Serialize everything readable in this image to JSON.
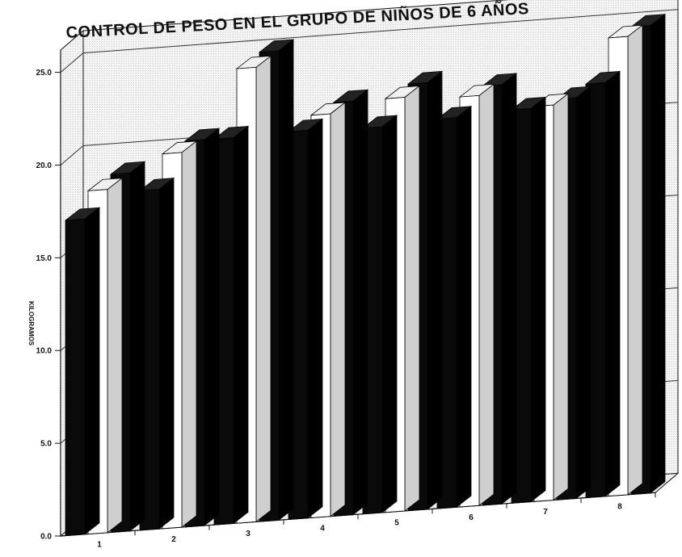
{
  "chart_data": {
    "type": "bar",
    "title": "CONTROL DE PESO EN EL GRUPO DE NIÑOS DE 6 AÑOS",
    "xlabel": "",
    "ylabel": "KILOGRAMOS",
    "categories": [
      "1",
      "2",
      "3",
      "4",
      "5",
      "6",
      "7",
      "8"
    ],
    "series": [
      {
        "values": [
          17.0,
          18.3,
          20.8,
          20.9,
          20.8,
          21.0,
          21.2,
          22.3
        ]
      },
      {
        "values": [
          18.5,
          20.2,
          24.5,
          21.7,
          22.3,
          22.1,
          21.3,
          24.7
        ]
      },
      {
        "values": [
          19.3,
          20.8,
          25.3,
          22.3,
          23.0,
          22.6,
          21.6,
          25.2
        ]
      }
    ],
    "ylim": [
      0,
      25
    ],
    "yticks": [
      "0.0",
      "5.0",
      "10.0",
      "15.0",
      "20.0",
      "25.0"
    ],
    "grid": true,
    "view": "3d",
    "colors": {
      "series_front": "#0a0a0a",
      "series_middle": "#ffffff",
      "series_back": "#0a0a0a",
      "panel": "#f6f6f6",
      "axis": "#111111"
    }
  }
}
